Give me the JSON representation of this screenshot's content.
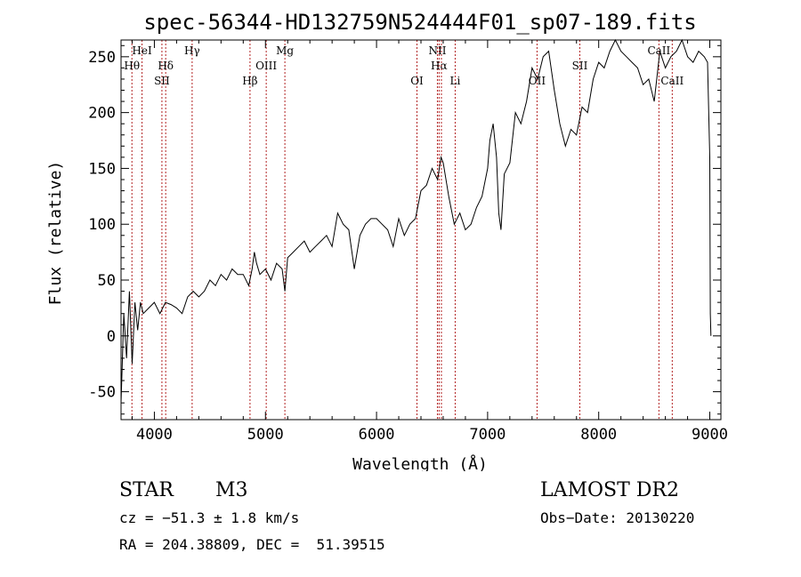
{
  "chart_data": {
    "type": "line",
    "title": "spec-56344-HD132759N524444F01_sp07-189.fits",
    "xlabel": "Wavelength (Å)",
    "ylabel": "Flux (relative)",
    "xlim": [
      3700,
      9100
    ],
    "ylim": [
      -75,
      265
    ],
    "xticks": [
      4000,
      5000,
      6000,
      7000,
      8000,
      9000
    ],
    "yticks": [
      -50,
      0,
      50,
      100,
      150,
      200,
      250
    ],
    "grid": false,
    "series": [
      {
        "x": [
          3700,
          3725,
          3750,
          3775,
          3800,
          3825,
          3850,
          3875,
          3900,
          3950,
          4000,
          4050,
          4100,
          4150,
          4200,
          4250,
          4300,
          4350,
          4400,
          4450,
          4500,
          4550,
          4600,
          4650,
          4700,
          4750,
          4800,
          4850,
          4880,
          4900,
          4920,
          4950,
          5000,
          5050,
          5100,
          5150,
          5175,
          5200,
          5250,
          5300,
          5350,
          5400,
          5450,
          5500,
          5550,
          5600,
          5650,
          5700,
          5750,
          5800,
          5850,
          5900,
          5950,
          6000,
          6050,
          6100,
          6150,
          6200,
          6250,
          6300,
          6350,
          6400,
          6450,
          6500,
          6550,
          6580,
          6600,
          6650,
          6700,
          6750,
          6800,
          6850,
          6900,
          6950,
          7000,
          7020,
          7050,
          7080,
          7100,
          7120,
          7150,
          7200,
          7250,
          7300,
          7350,
          7400,
          7450,
          7500,
          7550,
          7600,
          7650,
          7700,
          7750,
          7800,
          7850,
          7900,
          7950,
          8000,
          8050,
          8100,
          8150,
          8200,
          8250,
          8300,
          8350,
          8400,
          8450,
          8500,
          8550,
          8600,
          8650,
          8700,
          8750,
          8800,
          8850,
          8900,
          8950,
          8980,
          9000,
          9005,
          9010
        ],
        "y": [
          -60,
          20,
          -20,
          40,
          -25,
          30,
          5,
          30,
          20,
          25,
          30,
          20,
          30,
          28,
          25,
          20,
          35,
          40,
          35,
          40,
          50,
          45,
          55,
          50,
          60,
          55,
          55,
          45,
          60,
          75,
          65,
          55,
          60,
          50,
          65,
          60,
          40,
          70,
          75,
          80,
          85,
          75,
          80,
          85,
          90,
          80,
          110,
          100,
          95,
          60,
          90,
          100,
          105,
          105,
          100,
          95,
          80,
          105,
          90,
          100,
          105,
          130,
          135,
          150,
          140,
          160,
          155,
          125,
          100,
          110,
          95,
          100,
          115,
          125,
          150,
          175,
          190,
          160,
          110,
          95,
          145,
          155,
          200,
          190,
          210,
          240,
          230,
          250,
          255,
          220,
          190,
          170,
          185,
          180,
          205,
          200,
          230,
          245,
          240,
          255,
          265,
          255,
          250,
          245,
          240,
          225,
          230,
          210,
          255,
          240,
          250,
          255,
          265,
          250,
          245,
          255,
          250,
          245,
          160,
          20,
          0
        ]
      }
    ],
    "lines": [
      {
        "x": 3798,
        "label": "Hθ",
        "row": 2
      },
      {
        "x": 3889,
        "label": "HeI",
        "row": 1
      },
      {
        "x": 4068,
        "label": "SII",
        "row": 3
      },
      {
        "x": 4102,
        "label": "Hδ",
        "row": 2
      },
      {
        "x": 4340,
        "label": "Hγ",
        "row": 1
      },
      {
        "x": 4861,
        "label": "Hβ",
        "row": 3
      },
      {
        "x": 5007,
        "label": "OIII",
        "row": 2
      },
      {
        "x": 5175,
        "label": "Mg",
        "row": 1
      },
      {
        "x": 6364,
        "label": "OI",
        "row": 3
      },
      {
        "x": 6548,
        "label": "NII",
        "row": 1
      },
      {
        "x": 6563,
        "label": "Hα",
        "row": 2
      },
      {
        "x": 6584,
        "label": "",
        "row": 0
      },
      {
        "x": 6708,
        "label": "Li",
        "row": 3
      },
      {
        "x": 7445,
        "label": "OII",
        "row": 3
      },
      {
        "x": 7830,
        "label": "SII",
        "row": 2
      },
      {
        "x": 8542,
        "label": "CaII",
        "row": 1
      },
      {
        "x": 8662,
        "label": "CaII",
        "row": 3
      }
    ]
  },
  "footer": {
    "object_type": "STAR",
    "subclass": "M3",
    "survey": "LAMOST DR2",
    "cz": "cz = −51.3 ± 1.8 km/s",
    "obs_date": "Obs−Date: 20130220",
    "coords": "RA = 204.38809, DEC =  51.39515"
  }
}
